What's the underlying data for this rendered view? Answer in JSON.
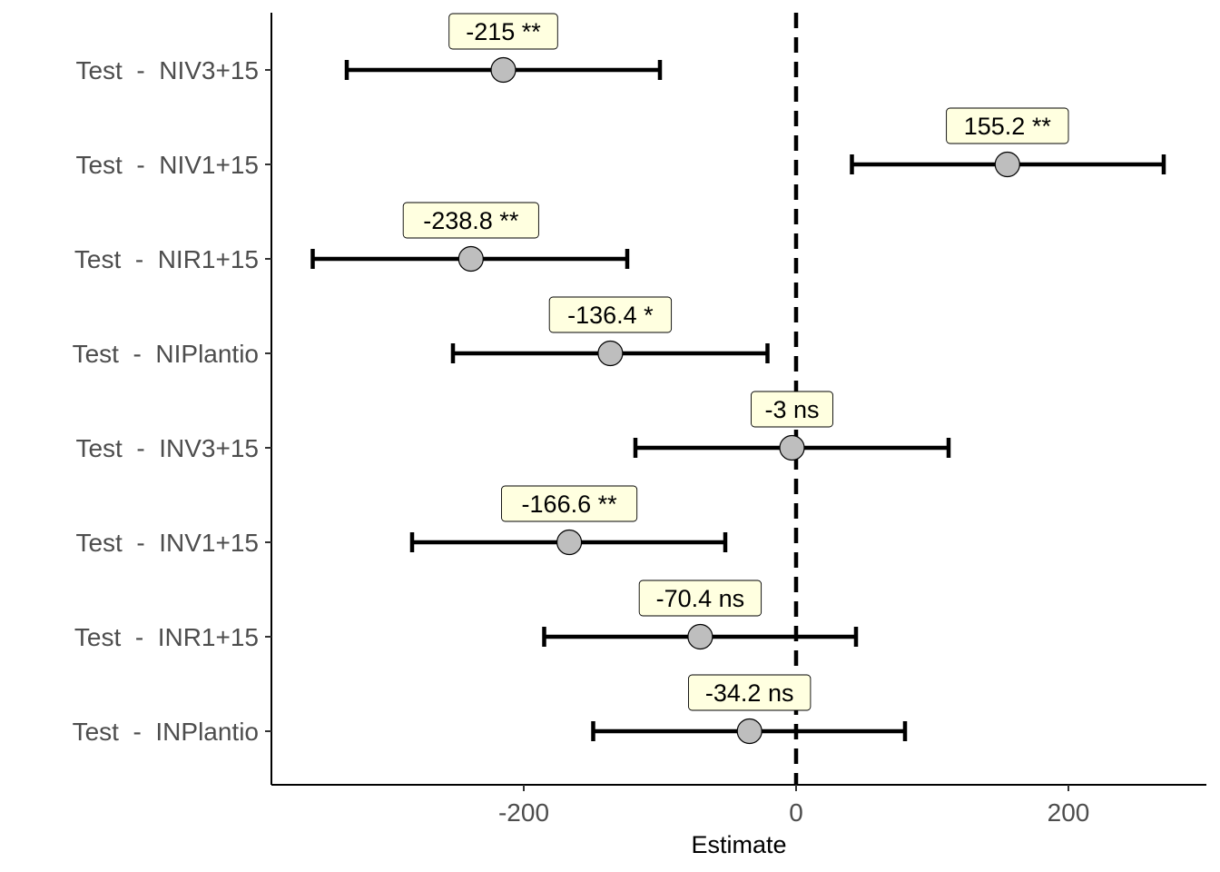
{
  "chart_data": {
    "type": "scatter",
    "subtype": "coefficient-plot-with-error-bars",
    "title": "",
    "xlabel": "Estimate",
    "ylabel": "",
    "xlim": [
      -385,
      300
    ],
    "x_ticks": [
      -200,
      0,
      200
    ],
    "x_tick_labels": [
      "-200",
      "0",
      "200"
    ],
    "reference_line": {
      "x": 0,
      "style": "dashed",
      "color": "#000000"
    },
    "grid": false,
    "legend": "none",
    "point_color": "#bebebe",
    "label_fill": "#ffffe0",
    "categories": [
      "Test  -  NIV3+15",
      "Test  -  NIV1+15",
      "Test  -  NIR1+15",
      "Test  -  NIPlantio",
      "Test  -  INV3+15",
      "Test  -  INV1+15",
      "Test  -  INR1+15",
      "Test  -  INPlantio"
    ],
    "estimates": [
      -215,
      155.2,
      -238.8,
      -136.4,
      -3,
      -166.6,
      -70.4,
      -34.2
    ],
    "lower": [
      -330,
      41,
      -355,
      -252,
      -118,
      -282,
      -185,
      -149
    ],
    "upper": [
      -100,
      270,
      -124,
      -21,
      112,
      -52,
      44,
      80
    ],
    "labels": [
      "-215 **",
      "155.2 **",
      "-238.8 **",
      "-136.4 *",
      "-3 ns",
      "-166.6 **",
      "-70.4 ns",
      "-34.2 ns"
    ]
  }
}
